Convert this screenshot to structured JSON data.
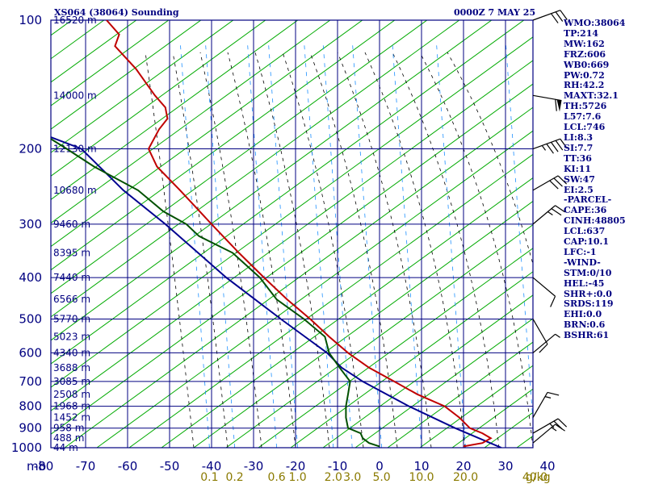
{
  "header": {
    "title": "XS064 (38064) Sounding",
    "valid_time": "0000Z  7 MAY 25"
  },
  "stats": [
    "WMO:38064",
    "TP:214",
    "MW:162",
    "FRZ:606",
    "WB0:669",
    "PW:0.72",
    "RH:42.2",
    "MAXT:32.1",
    "TH:5726",
    "L57:7.6",
    "LCL:746",
    "LI:8.3",
    "SI:7.7",
    "TT:36",
    "KI:11",
    "SW:47",
    "EI:2.5",
    "-PARCEL-",
    "CAPE:36",
    "CINH:48805",
    "LCL:637",
    "CAP:10.1",
    "LFC:-1",
    "-WIND-",
    "STM:0/10",
    "HEL:-45",
    "SHR+:0.0",
    "SRDS:119",
    "EHI:0.0",
    "BRN:0.6",
    "BSHR:61"
  ],
  "colors": {
    "frame": "#000080",
    "dry_adiabat": "#00aa00",
    "moist_adiabat": "#000000",
    "mixing_ratio": "#1e90ff",
    "temperature": "#c00000",
    "dewpoint": "#005000",
    "parcel": "#000090",
    "mixing_label": "#8a7a00"
  },
  "chart_data": {
    "type": "skew-t",
    "pressure_unit_label": "mb",
    "mixing_unit_label": "g/kg",
    "pressure_ticks": [
      100,
      200,
      300,
      400,
      500,
      600,
      700,
      800,
      900,
      1000
    ],
    "temperature_ticks": [
      -80,
      -70,
      -60,
      -50,
      -40,
      -30,
      -20,
      -10,
      0,
      10,
      20,
      30,
      40
    ],
    "mixing_ratio_labels": [
      {
        "label": "0.1",
        "x_deg": -40.5
      },
      {
        "label": "0.2",
        "x_deg": -34.5
      },
      {
        "label": "0.6",
        "x_deg": -24.5
      },
      {
        "label": "1.0",
        "x_deg": -19.5
      },
      {
        "label": "2.0",
        "x_deg": -11.0
      },
      {
        "label": "3.0",
        "x_deg": -6.5
      },
      {
        "label": "5.0",
        "x_deg": 0.5
      },
      {
        "label": "10.0",
        "x_deg": 10.0
      },
      {
        "label": "20.0",
        "x_deg": 20.5
      },
      {
        "label": "40.0",
        "x_deg": 37.0
      }
    ],
    "heights": [
      {
        "p": 100,
        "label": "16520 m"
      },
      {
        "p": 150,
        "label": "14000 m"
      },
      {
        "p": 200,
        "label": "12130 m"
      },
      {
        "p": 250,
        "label": "10680 m"
      },
      {
        "p": 300,
        "label": "9460 m"
      },
      {
        "p": 350,
        "label": "8395 m"
      },
      {
        "p": 400,
        "label": "7440 m"
      },
      {
        "p": 450,
        "label": "6566 m"
      },
      {
        "p": 500,
        "label": "5770 m"
      },
      {
        "p": 550,
        "label": "5023 m"
      },
      {
        "p": 600,
        "label": "4340 m"
      },
      {
        "p": 650,
        "label": "3688 m"
      },
      {
        "p": 700,
        "label": "3085 m"
      },
      {
        "p": 750,
        "label": "2508 m"
      },
      {
        "p": 800,
        "label": "1968 m"
      },
      {
        "p": 850,
        "label": "1452 m"
      },
      {
        "p": 900,
        "label": "958 m"
      },
      {
        "p": 950,
        "label": "488 m"
      },
      {
        "p": 1000,
        "label": "44 m"
      }
    ],
    "temperature": [
      {
        "p": 993,
        "x_deg": 20.0
      },
      {
        "p": 975,
        "x_deg": 24.5
      },
      {
        "p": 950,
        "x_deg": 26.5
      },
      {
        "p": 925,
        "x_deg": 24.5
      },
      {
        "p": 900,
        "x_deg": 21.5
      },
      {
        "p": 850,
        "x_deg": 19.0
      },
      {
        "p": 800,
        "x_deg": 15.5
      },
      {
        "p": 750,
        "x_deg": 9.0
      },
      {
        "p": 700,
        "x_deg": 3.5
      },
      {
        "p": 650,
        "x_deg": -2.5
      },
      {
        "p": 600,
        "x_deg": -7.5
      },
      {
        "p": 550,
        "x_deg": -12.0
      },
      {
        "p": 500,
        "x_deg": -16.5
      },
      {
        "p": 450,
        "x_deg": -22.0
      },
      {
        "p": 400,
        "x_deg": -27.5
      },
      {
        "p": 350,
        "x_deg": -33.5
      },
      {
        "p": 300,
        "x_deg": -40.0
      },
      {
        "p": 250,
        "x_deg": -47.5
      },
      {
        "p": 220,
        "x_deg": -53.0
      },
      {
        "p": 200,
        "x_deg": -55.0
      },
      {
        "p": 180,
        "x_deg": -52.5
      },
      {
        "p": 170,
        "x_deg": -50.5
      },
      {
        "p": 160,
        "x_deg": -51.0
      },
      {
        "p": 150,
        "x_deg": -53.5
      },
      {
        "p": 130,
        "x_deg": -58.0
      },
      {
        "p": 115,
        "x_deg": -63.0
      },
      {
        "p": 108,
        "x_deg": -62.0
      },
      {
        "p": 100,
        "x_deg": -65.0
      }
    ],
    "dewpoint": [
      {
        "p": 993,
        "x_deg": 0.0
      },
      {
        "p": 975,
        "x_deg": -2.5
      },
      {
        "p": 950,
        "x_deg": -4.0
      },
      {
        "p": 925,
        "x_deg": -4.5
      },
      {
        "p": 900,
        "x_deg": -7.5
      },
      {
        "p": 850,
        "x_deg": -8.0
      },
      {
        "p": 800,
        "x_deg": -8.0
      },
      {
        "p": 750,
        "x_deg": -7.5
      },
      {
        "p": 700,
        "x_deg": -7.0
      },
      {
        "p": 650,
        "x_deg": -9.5
      },
      {
        "p": 600,
        "x_deg": -12.0
      },
      {
        "p": 550,
        "x_deg": -13.0
      },
      {
        "p": 500,
        "x_deg": -18.0
      },
      {
        "p": 450,
        "x_deg": -24.5
      },
      {
        "p": 400,
        "x_deg": -28.5
      },
      {
        "p": 350,
        "x_deg": -35.0
      },
      {
        "p": 320,
        "x_deg": -43.0
      },
      {
        "p": 300,
        "x_deg": -46.0
      },
      {
        "p": 280,
        "x_deg": -51.5
      },
      {
        "p": 250,
        "x_deg": -57.5
      },
      {
        "p": 220,
        "x_deg": -68.0
      },
      {
        "p": 200,
        "x_deg": -74.5
      },
      {
        "p": 185,
        "x_deg": -80.0
      }
    ],
    "parcel": [
      {
        "p": 1000,
        "x_deg": 29.0
      },
      {
        "p": 900,
        "x_deg": 18.0
      },
      {
        "p": 800,
        "x_deg": 7.0
      },
      {
        "p": 700,
        "x_deg": -4.0
      },
      {
        "p": 650,
        "x_deg": -9.0
      },
      {
        "p": 600,
        "x_deg": -12.5
      },
      {
        "p": 500,
        "x_deg": -23.5
      },
      {
        "p": 400,
        "x_deg": -36.5
      },
      {
        "p": 300,
        "x_deg": -51.0
      },
      {
        "p": 250,
        "x_deg": -61.0
      },
      {
        "p": 200,
        "x_deg": -71.0
      },
      {
        "p": 185,
        "x_deg": -80.0
      }
    ],
    "wind_barbs": [
      {
        "p": 100,
        "dir": 250,
        "speed": 30
      },
      {
        "p": 150,
        "dir": 280,
        "speed": 60
      },
      {
        "p": 200,
        "dir": 250,
        "speed": 45
      },
      {
        "p": 250,
        "dir": 240,
        "speed": 30
      },
      {
        "p": 300,
        "dir": 230,
        "speed": 25
      },
      {
        "p": 400,
        "dir": 310,
        "speed": 10
      },
      {
        "p": 500,
        "dir": 330,
        "speed": 10
      },
      {
        "p": 600,
        "dir": 230,
        "speed": 5
      },
      {
        "p": 850,
        "dir": 210,
        "speed": 15
      },
      {
        "p": 925,
        "dir": 240,
        "speed": 25
      },
      {
        "p": 975,
        "dir": 230,
        "speed": 15
      }
    ]
  }
}
